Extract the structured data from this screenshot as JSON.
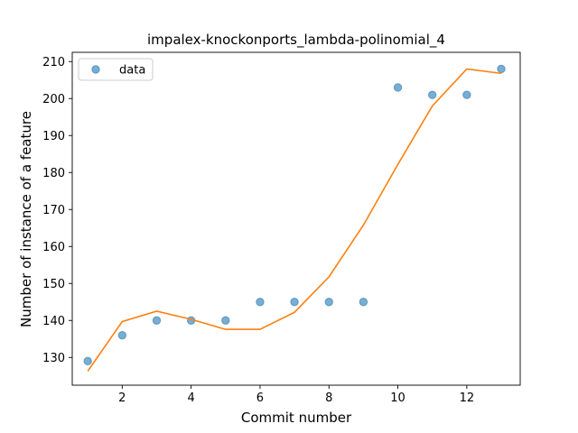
{
  "chart_data": {
    "type": "scatter",
    "title": "impalex-knockonports_lambda-polinomial_4",
    "xlabel": "Commit number",
    "ylabel": "Number of instance of a feature",
    "xlim": [
      0.55,
      13.55
    ],
    "ylim": [
      122.5,
      212.5
    ],
    "xticks": [
      2,
      4,
      6,
      8,
      10,
      12
    ],
    "yticks": [
      130,
      140,
      150,
      160,
      170,
      180,
      190,
      200,
      210
    ],
    "grid": false,
    "legend_position": "top-left",
    "series": [
      {
        "name": "data",
        "kind": "scatter",
        "color": "#1f77b4",
        "x": [
          1,
          2,
          3,
          4,
          5,
          6,
          7,
          8,
          9,
          10,
          11,
          12,
          13
        ],
        "y": [
          129,
          136,
          140,
          140,
          140,
          145,
          145,
          145,
          145,
          203,
          201,
          201,
          208
        ]
      },
      {
        "kind": "line",
        "color": "#ff7f0e",
        "x": [
          1,
          2,
          3,
          4,
          5,
          6,
          7,
          8,
          9,
          10,
          11,
          12,
          13
        ],
        "y": [
          126.3,
          139.7,
          142.5,
          140.3,
          137.6,
          137.6,
          142.2,
          151.8,
          165.8,
          182.2,
          198.0,
          208.0,
          206.8
        ]
      }
    ]
  }
}
